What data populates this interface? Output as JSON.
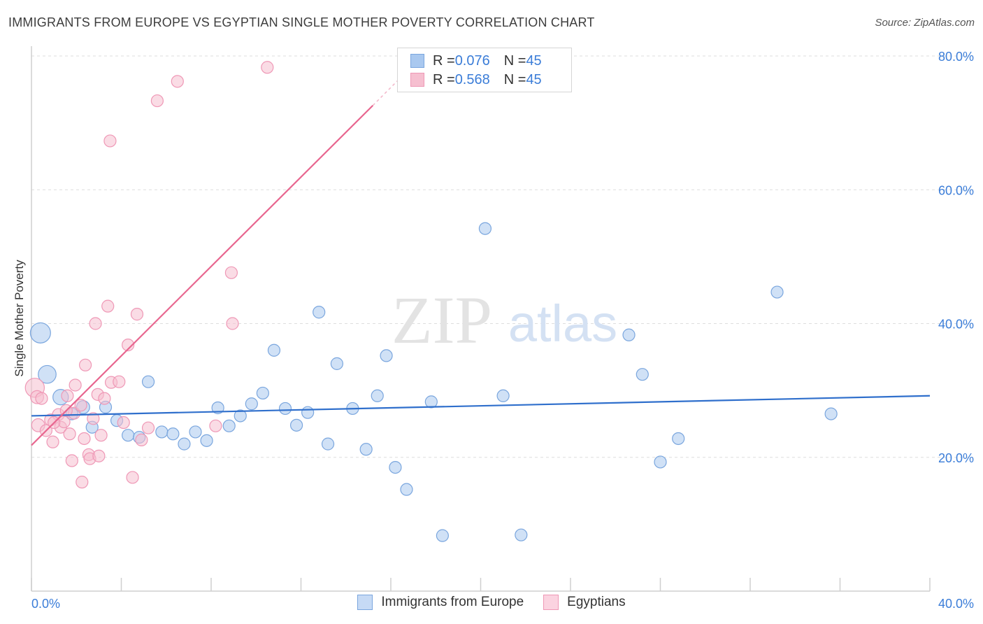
{
  "header": {
    "title": "IMMIGRANTS FROM EUROPE VS EGYPTIAN SINGLE MOTHER POVERTY CORRELATION CHART",
    "source": "Source: ZipAtlas.com"
  },
  "watermark": {
    "zip": "ZIP",
    "atlas": "atlas"
  },
  "legend_top": {
    "rows": [
      {
        "r_label": "R = ",
        "r_value": "0.076",
        "n_label": "N = ",
        "n_value": "45"
      },
      {
        "r_label": "R = ",
        "r_value": "0.568",
        "n_label": "N = ",
        "n_value": "45"
      }
    ]
  },
  "colors": {
    "blue_fill": "#a9c8ef",
    "blue_stroke": "#7aa6de",
    "blue_line": "#2f6fcc",
    "pink_fill": "#f6bfd0",
    "pink_stroke": "#ef98b6",
    "pink_line": "#e8668f",
    "accent_text": "#3b7dd8",
    "grid": "#dedede"
  },
  "chart_data": {
    "type": "scatter",
    "title": "IMMIGRANTS FROM EUROPE VS EGYPTIAN SINGLE MOTHER POVERTY CORRELATION CHART",
    "xlabel": "",
    "ylabel": "Single Mother Poverty",
    "xlim": [
      0,
      40
    ],
    "ylim": [
      0,
      80
    ],
    "x_tick_labels": [
      "0.0%",
      "40.0%"
    ],
    "y_tick_labels": [
      "20.0%",
      "40.0%",
      "60.0%",
      "80.0%"
    ],
    "y_tick_values": [
      20,
      40,
      60,
      80
    ],
    "x_tick_values": [
      0,
      4,
      8,
      12,
      16,
      20,
      24,
      28,
      32,
      36,
      40
    ],
    "grid": true,
    "legend_position": "top-center",
    "series": [
      {
        "name": "Immigrants from Europe",
        "color": "#a9c8ef",
        "trend": {
          "x": [
            0,
            40
          ],
          "y": [
            26.2,
            29.2
          ]
        },
        "points": [
          {
            "x": 0.4,
            "y": 38.6,
            "s": 1.7
          },
          {
            "x": 0.7,
            "y": 32.4,
            "s": 1.5
          },
          {
            "x": 1.3,
            "y": 29.0,
            "s": 1.3
          },
          {
            "x": 1.8,
            "y": 26.5,
            "s": 1.0
          },
          {
            "x": 2.3,
            "y": 27.5,
            "s": 1.1
          },
          {
            "x": 2.7,
            "y": 24.5,
            "s": 1.0
          },
          {
            "x": 3.3,
            "y": 27.5,
            "s": 1.0
          },
          {
            "x": 3.8,
            "y": 25.5,
            "s": 1.0
          },
          {
            "x": 4.3,
            "y": 23.3,
            "s": 1.0
          },
          {
            "x": 5.2,
            "y": 31.3,
            "s": 1.0
          },
          {
            "x": 4.8,
            "y": 23.0,
            "s": 1.0
          },
          {
            "x": 5.8,
            "y": 23.8,
            "s": 1.0
          },
          {
            "x": 6.3,
            "y": 23.5,
            "s": 1.0
          },
          {
            "x": 6.8,
            "y": 22.0,
            "s": 1.0
          },
          {
            "x": 7.3,
            "y": 23.8,
            "s": 1.0
          },
          {
            "x": 7.8,
            "y": 22.5,
            "s": 1.0
          },
          {
            "x": 8.3,
            "y": 27.4,
            "s": 1.0
          },
          {
            "x": 8.8,
            "y": 24.7,
            "s": 1.0
          },
          {
            "x": 9.3,
            "y": 26.2,
            "s": 1.0
          },
          {
            "x": 9.8,
            "y": 28.0,
            "s": 1.0
          },
          {
            "x": 10.3,
            "y": 29.6,
            "s": 1.0
          },
          {
            "x": 10.8,
            "y": 36.0,
            "s": 1.0
          },
          {
            "x": 11.3,
            "y": 27.3,
            "s": 1.0
          },
          {
            "x": 11.8,
            "y": 24.8,
            "s": 1.0
          },
          {
            "x": 12.3,
            "y": 26.7,
            "s": 1.0
          },
          {
            "x": 12.8,
            "y": 41.7,
            "s": 1.0
          },
          {
            "x": 13.2,
            "y": 22.0,
            "s": 1.0
          },
          {
            "x": 13.6,
            "y": 34.0,
            "s": 1.0
          },
          {
            "x": 14.3,
            "y": 27.3,
            "s": 1.0
          },
          {
            "x": 14.9,
            "y": 21.2,
            "s": 1.0
          },
          {
            "x": 15.4,
            "y": 29.2,
            "s": 1.0
          },
          {
            "x": 15.8,
            "y": 35.2,
            "s": 1.0
          },
          {
            "x": 16.2,
            "y": 18.5,
            "s": 1.0
          },
          {
            "x": 16.7,
            "y": 15.2,
            "s": 1.0
          },
          {
            "x": 17.8,
            "y": 28.3,
            "s": 1.0
          },
          {
            "x": 18.3,
            "y": 8.3,
            "s": 1.0
          },
          {
            "x": 20.2,
            "y": 54.2,
            "s": 1.0
          },
          {
            "x": 21.0,
            "y": 29.2,
            "s": 1.0
          },
          {
            "x": 21.8,
            "y": 8.4,
            "s": 1.0
          },
          {
            "x": 26.6,
            "y": 38.3,
            "s": 1.0
          },
          {
            "x": 27.2,
            "y": 32.4,
            "s": 1.0
          },
          {
            "x": 28.0,
            "y": 19.3,
            "s": 1.0
          },
          {
            "x": 28.8,
            "y": 22.8,
            "s": 1.0
          },
          {
            "x": 33.2,
            "y": 44.7,
            "s": 1.0
          },
          {
            "x": 35.6,
            "y": 26.5,
            "s": 1.0
          }
        ]
      },
      {
        "name": "Egyptians",
        "color": "#f6bfd0",
        "trend": {
          "x": [
            0,
            15.2
          ],
          "y": [
            21.8,
            72.6
          ]
        },
        "trend_dashed": {
          "x": [
            15.2,
            17.4
          ],
          "y": [
            72.6,
            80.0
          ]
        },
        "points": [
          {
            "x": 0.15,
            "y": 30.4,
            "s": 1.6
          },
          {
            "x": 0.25,
            "y": 29.0,
            "s": 1.1
          },
          {
            "x": 0.3,
            "y": 24.8,
            "s": 1.1
          },
          {
            "x": 0.45,
            "y": 28.8,
            "s": 1.0
          },
          {
            "x": 0.65,
            "y": 24.0,
            "s": 1.0
          },
          {
            "x": 0.85,
            "y": 25.6,
            "s": 1.0
          },
          {
            "x": 0.95,
            "y": 22.3,
            "s": 1.0
          },
          {
            "x": 1.2,
            "y": 26.4,
            "s": 1.0
          },
          {
            "x": 1.3,
            "y": 24.5,
            "s": 1.0
          },
          {
            "x": 1.45,
            "y": 25.3,
            "s": 1.0
          },
          {
            "x": 1.6,
            "y": 29.2,
            "s": 1.0
          },
          {
            "x": 1.7,
            "y": 23.5,
            "s": 1.0
          },
          {
            "x": 1.8,
            "y": 19.5,
            "s": 1.0
          },
          {
            "x": 1.9,
            "y": 26.6,
            "s": 1.0
          },
          {
            "x": 1.95,
            "y": 30.8,
            "s": 1.0
          },
          {
            "x": 2.2,
            "y": 27.8,
            "s": 1.0
          },
          {
            "x": 2.25,
            "y": 16.3,
            "s": 1.0
          },
          {
            "x": 2.35,
            "y": 22.8,
            "s": 1.0
          },
          {
            "x": 2.4,
            "y": 33.8,
            "s": 1.0
          },
          {
            "x": 2.55,
            "y": 20.4,
            "s": 1.0
          },
          {
            "x": 2.6,
            "y": 19.8,
            "s": 1.0
          },
          {
            "x": 2.75,
            "y": 25.8,
            "s": 1.0
          },
          {
            "x": 2.85,
            "y": 40.0,
            "s": 1.0
          },
          {
            "x": 2.95,
            "y": 29.4,
            "s": 1.0
          },
          {
            "x": 3.1,
            "y": 23.3,
            "s": 1.0
          },
          {
            "x": 3.25,
            "y": 28.8,
            "s": 1.0
          },
          {
            "x": 3.4,
            "y": 42.6,
            "s": 1.0
          },
          {
            "x": 3.5,
            "y": 67.3,
            "s": 1.0
          },
          {
            "x": 3.55,
            "y": 31.2,
            "s": 1.0
          },
          {
            "x": 3.9,
            "y": 31.3,
            "s": 1.0
          },
          {
            "x": 4.1,
            "y": 25.2,
            "s": 1.0
          },
          {
            "x": 4.3,
            "y": 36.8,
            "s": 1.0
          },
          {
            "x": 4.5,
            "y": 17.0,
            "s": 1.0
          },
          {
            "x": 4.7,
            "y": 41.4,
            "s": 1.0
          },
          {
            "x": 4.9,
            "y": 22.6,
            "s": 1.0
          },
          {
            "x": 5.2,
            "y": 24.4,
            "s": 1.0
          },
          {
            "x": 5.6,
            "y": 73.3,
            "s": 1.0
          },
          {
            "x": 6.5,
            "y": 76.2,
            "s": 1.0
          },
          {
            "x": 8.2,
            "y": 24.7,
            "s": 1.0
          },
          {
            "x": 8.9,
            "y": 47.6,
            "s": 1.0
          },
          {
            "x": 8.95,
            "y": 40.0,
            "s": 1.0
          },
          {
            "x": 10.5,
            "y": 78.3,
            "s": 1.0
          },
          {
            "x": 1.0,
            "y": 25.2,
            "s": 1.0
          },
          {
            "x": 1.55,
            "y": 27.0,
            "s": 1.0
          },
          {
            "x": 3.0,
            "y": 20.2,
            "s": 1.0
          }
        ]
      }
    ]
  }
}
